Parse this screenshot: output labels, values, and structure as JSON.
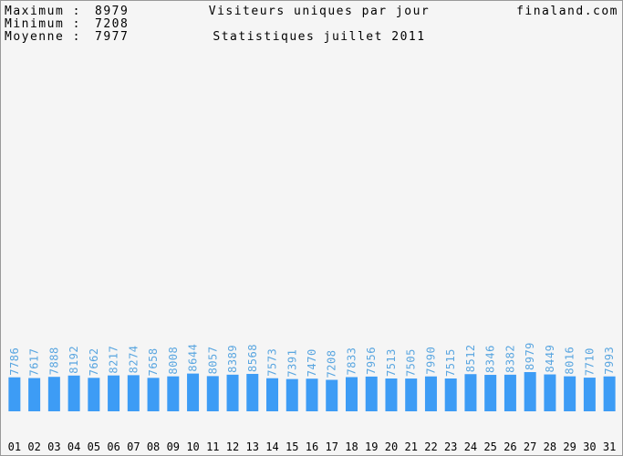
{
  "chart_data": {
    "type": "bar",
    "title": "Visiteurs uniques par jour",
    "subtitle": "Statistiques juillet 2011",
    "site": "finaland.com",
    "stats": [
      {
        "label": "Maximum :",
        "value": 8979
      },
      {
        "label": "Minimum :",
        "value": 7208
      },
      {
        "label": "Moyenne :",
        "value": 7977
      }
    ],
    "color": "#3d9cf5",
    "label_color": "#5aa6e0",
    "categories": [
      "01",
      "02",
      "03",
      "04",
      "05",
      "06",
      "07",
      "08",
      "09",
      "10",
      "11",
      "12",
      "13",
      "14",
      "15",
      "16",
      "17",
      "18",
      "19",
      "20",
      "21",
      "22",
      "23",
      "24",
      "25",
      "26",
      "27",
      "28",
      "29",
      "30",
      "31"
    ],
    "values": [
      7786,
      7617,
      7888,
      8192,
      7662,
      8217,
      8274,
      7658,
      8008,
      8644,
      8057,
      8389,
      8568,
      7573,
      7391,
      7470,
      7208,
      7833,
      7956,
      7513,
      7505,
      7990,
      7515,
      8512,
      8346,
      8382,
      8979,
      8449,
      8016,
      7710,
      7993
    ]
  }
}
